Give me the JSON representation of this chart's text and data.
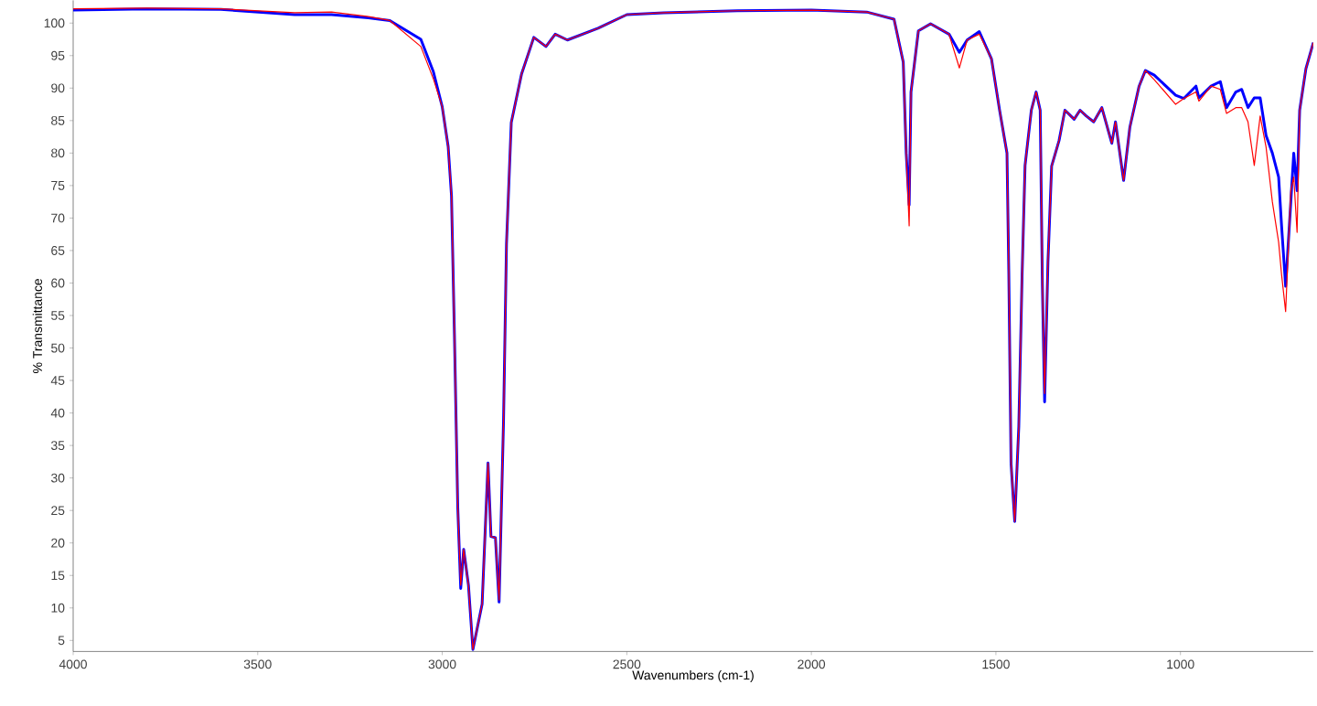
{
  "chart_data": {
    "type": "line",
    "xlabel": "Wavenumbers (cm-1)",
    "ylabel": "% Transmittance",
    "xlim": [
      4000,
      640
    ],
    "ylim": [
      3.3,
      103.5
    ],
    "xticks": [
      4000,
      3500,
      3000,
      2500,
      2000,
      1500,
      1000
    ],
    "yticks": [
      5,
      10,
      15,
      20,
      25,
      30,
      35,
      40,
      45,
      50,
      55,
      60,
      65,
      70,
      75,
      80,
      85,
      90,
      95,
      100
    ],
    "x": [
      4000,
      3800,
      3600,
      3400,
      3300,
      3200,
      3142,
      3058,
      3024,
      3000,
      2984,
      2975,
      2967,
      2958,
      2950,
      2942,
      2929,
      2917,
      2892,
      2876,
      2868,
      2856,
      2846,
      2834,
      2826,
      2813,
      2785,
      2752,
      2719,
      2694,
      2661,
      2578,
      2500,
      2400,
      2200,
      2000,
      1850,
      1776,
      1751,
      1743,
      1735,
      1730,
      1710,
      1677,
      1627,
      1599,
      1578,
      1545,
      1512,
      1490,
      1470,
      1465,
      1459,
      1449,
      1438,
      1429,
      1421,
      1404,
      1391,
      1380,
      1374,
      1368,
      1359,
      1349,
      1329,
      1313,
      1288,
      1272,
      1255,
      1235,
      1213,
      1186,
      1176,
      1154,
      1137,
      1112,
      1095,
      1071,
      1013,
      991,
      958,
      950,
      917,
      892,
      875,
      850,
      834,
      817,
      800,
      784,
      768,
      751,
      734,
      726,
      715,
      701,
      693,
      684,
      677,
      660,
      640
    ],
    "series": [
      {
        "color": "#0000ff",
        "values": [
          102.0,
          102.2,
          102.1,
          101.3,
          101.3,
          100.8,
          100.4,
          97.5,
          92.5,
          87.1,
          81,
          73.4,
          52,
          25.5,
          13,
          19,
          13.5,
          3.6,
          10.6,
          32.3,
          21,
          20.8,
          10.9,
          38.8,
          66,
          84.7,
          92.2,
          97.8,
          96.4,
          98.3,
          97.4,
          99.2,
          101.3,
          101.6,
          101.9,
          102,
          101.7,
          100.6,
          94,
          80,
          72,
          89.4,
          98.8,
          99.9,
          98.3,
          95.5,
          97.4,
          98.7,
          94.5,
          86.6,
          80,
          61.3,
          32.3,
          23.3,
          37.9,
          61.3,
          78.1,
          86.6,
          89.4,
          86.6,
          59.5,
          41.7,
          63.2,
          78,
          81.9,
          86.6,
          85.2,
          86.6,
          85.7,
          84.8,
          87,
          81.5,
          84.8,
          75.8,
          84,
          90.3,
          92.7,
          92,
          88.9,
          88.4,
          90.3,
          88.5,
          90.3,
          91,
          87,
          89.4,
          89.8,
          87,
          88.5,
          88.5,
          82.7,
          80,
          76.3,
          68.8,
          59.5,
          72.5,
          80,
          74.2,
          86.6,
          93,
          97
        ]
      },
      {
        "color": "#ff0000",
        "values": [
          102.2,
          102.3,
          102.2,
          101.6,
          101.7,
          101.0,
          100.4,
          96.4,
          91.4,
          87.1,
          81,
          73.4,
          52,
          25.5,
          13.5,
          19,
          13.5,
          3.6,
          10.6,
          32.3,
          21,
          20.8,
          11.2,
          38.8,
          66,
          84.7,
          92.2,
          97.8,
          96.4,
          98.3,
          97.4,
          99.2,
          101.3,
          101.6,
          101.9,
          102,
          101.7,
          100.6,
          94,
          80,
          68.8,
          89.4,
          98.8,
          99.9,
          98.3,
          93.1,
          97.4,
          98.3,
          94.5,
          86.6,
          80,
          61.3,
          32.3,
          23.3,
          37.9,
          61.3,
          78.1,
          86.6,
          89.4,
          86.6,
          59.5,
          43,
          63.2,
          78,
          81.9,
          86.6,
          85.2,
          86.6,
          85.7,
          84.8,
          87,
          81.5,
          84.8,
          75.8,
          84,
          90.3,
          92.7,
          91.3,
          87.5,
          88.4,
          89.4,
          88,
          90.3,
          89.8,
          86.1,
          87,
          87,
          84.8,
          78.1,
          85.7,
          80.9,
          72.5,
          66.3,
          61.3,
          55.6,
          74.2,
          76.3,
          67.8,
          86.6,
          93,
          97
        ]
      }
    ]
  }
}
